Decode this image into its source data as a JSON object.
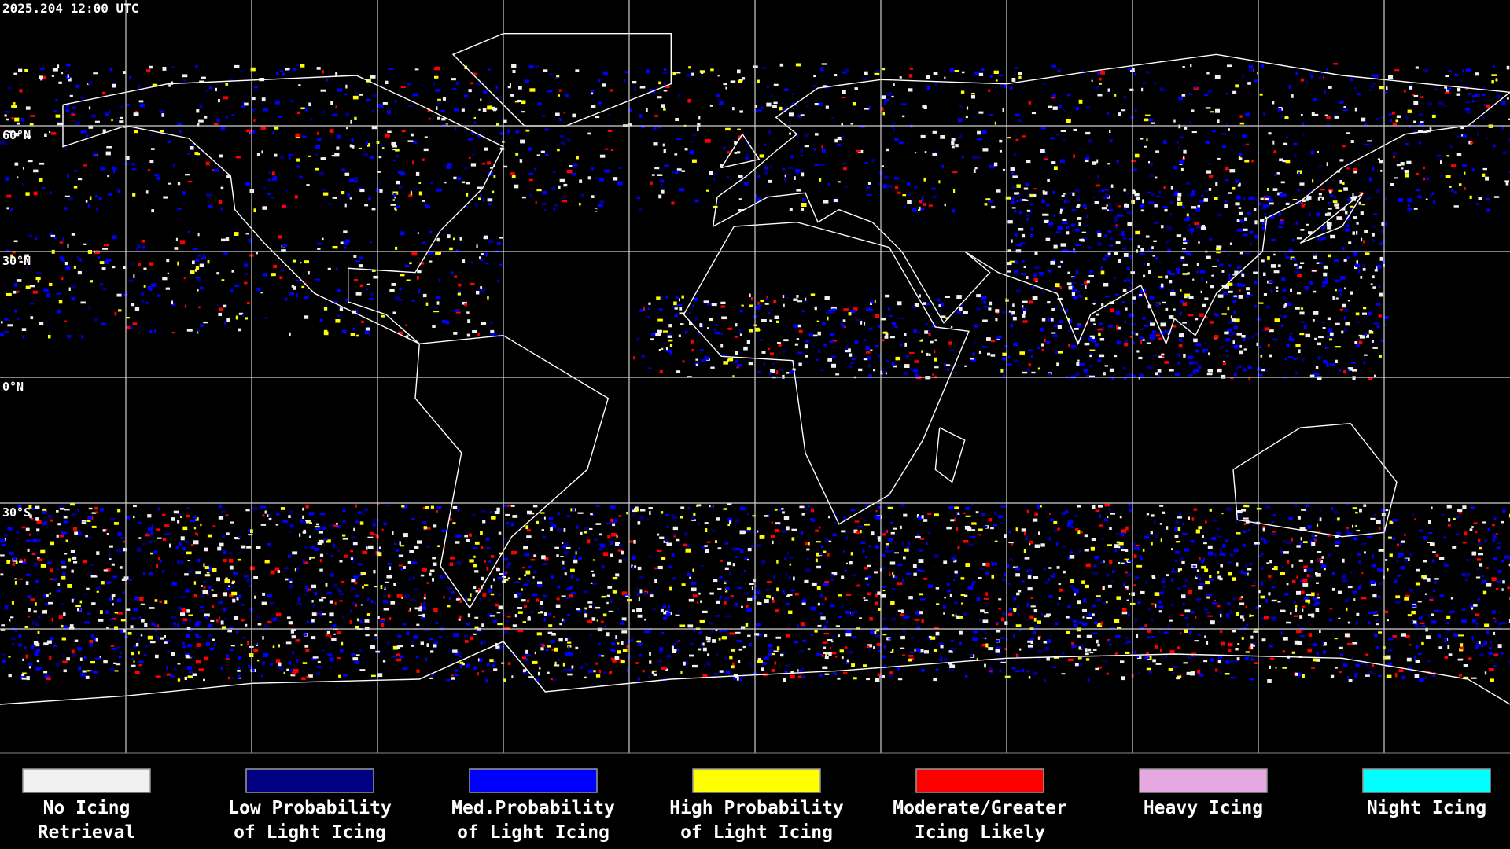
{
  "timestamp": "2025.204 12:00 UTC",
  "latitude_labels": [
    "60°N",
    "30°N",
    "0°N",
    "30°S"
  ],
  "legend": [
    {
      "lines": [
        "No Icing",
        "Retrieval"
      ],
      "color": "#f0f0f0"
    },
    {
      "lines": [
        "Low Probability",
        "of Light Icing"
      ],
      "color": "#000080"
    },
    {
      "lines": [
        "Med.Probability",
        "of Light Icing"
      ],
      "color": "#0000ff"
    },
    {
      "lines": [
        "High Probability",
        "of Light Icing"
      ],
      "color": "#ffff00"
    },
    {
      "lines": [
        "Moderate/Greater",
        "Icing Likely"
      ],
      "color": "#ff0000"
    },
    {
      "lines": [
        "Heavy Icing"
      ],
      "color": "#e6a8e0"
    },
    {
      "lines": [
        "Night Icing"
      ],
      "color": "#00ffff"
    }
  ]
}
